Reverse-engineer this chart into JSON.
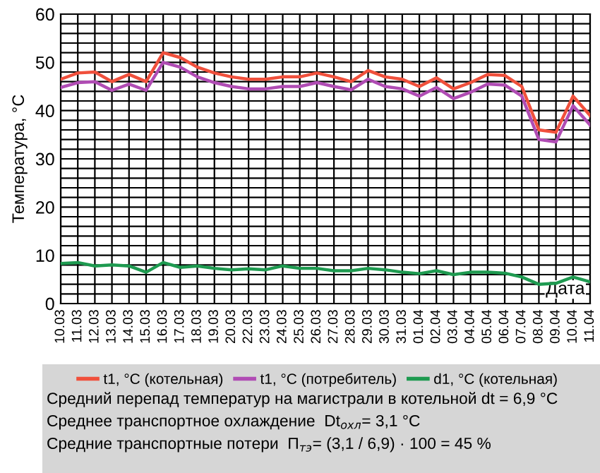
{
  "chart_data": {
    "type": "line",
    "ylabel": "Температура, °C",
    "xlabel": "Дата",
    "categories": [
      "10.03",
      "11.03",
      "12.03",
      "13.03",
      "14.03",
      "15.03",
      "16.03",
      "17.03",
      "18.03",
      "19.03",
      "20.03",
      "22.03",
      "23.03",
      "24.03",
      "25.03",
      "26.03",
      "27.03",
      "28.03",
      "29.03",
      "30.03",
      "31.03",
      "01.04",
      "02.04",
      "03.04",
      "04.04",
      "05.04",
      "06.04",
      "07.04",
      "08.04",
      "09.04",
      "10.04",
      "11.04"
    ],
    "series": [
      {
        "name": "t1, °C (котельная)",
        "color": "#f0503c",
        "values": [
          46.5,
          47.8,
          48,
          46,
          47.5,
          46,
          52,
          51,
          49,
          47.8,
          47,
          46.5,
          46.5,
          47,
          47,
          47.8,
          47,
          46,
          48.3,
          47,
          46.5,
          45,
          46.8,
          44.5,
          45.8,
          47.5,
          47.3,
          45,
          36,
          35.5,
          43,
          39
        ]
      },
      {
        "name": "t1, °C (потребитель)",
        "color": "#b04cb4",
        "values": [
          44.8,
          45.8,
          46,
          44.2,
          45.5,
          44.2,
          50,
          49,
          47,
          45.8,
          45,
          44.5,
          44.5,
          45,
          45,
          45.8,
          45,
          44.3,
          46.5,
          45,
          44.5,
          43,
          44.8,
          42.5,
          43.8,
          45.5,
          45.3,
          43,
          34,
          33.5,
          41,
          37
        ]
      },
      {
        "name": "d1, °C (котельная)",
        "color": "#1e9a50",
        "values": [
          8.3,
          8.5,
          7.8,
          8,
          7.8,
          6.5,
          8.5,
          7.5,
          7.8,
          7.3,
          7,
          7.2,
          7,
          7.8,
          7.3,
          7.3,
          6.8,
          6.8,
          7.3,
          7,
          6.5,
          6.2,
          6.8,
          6,
          6.5,
          6.5,
          6.3,
          5.5,
          4,
          4.2,
          5.5,
          4.5
        ]
      }
    ],
    "ylim": [
      0,
      60
    ],
    "yticks": [
      0,
      {
        "value": 2,
        "label": null
      },
      {
        "value": 4,
        "label": null
      },
      {
        "value": 6,
        "label": null
      },
      {
        "value": 8,
        "label": null
      },
      10,
      {
        "value": 12,
        "label": null
      },
      {
        "value": 14,
        "label": null
      },
      {
        "value": 16,
        "label": null
      },
      {
        "value": 18,
        "label": null
      },
      20,
      {
        "value": 22,
        "label": null
      },
      {
        "value": 24,
        "label": null
      },
      {
        "value": 26,
        "label": null
      },
      {
        "value": 28,
        "label": null
      },
      30,
      {
        "value": 32,
        "label": null
      },
      {
        "value": 34,
        "label": null
      },
      {
        "value": 36,
        "label": null
      },
      {
        "value": 38,
        "label": null
      },
      40,
      {
        "value": 42,
        "label": null
      },
      {
        "value": 44,
        "label": null
      },
      {
        "value": 46,
        "label": null
      },
      {
        "value": 48,
        "label": null
      },
      50,
      {
        "value": 52,
        "label": null
      },
      {
        "value": 54,
        "label": null
      },
      {
        "value": 56,
        "label": null
      },
      {
        "value": 58,
        "label": null
      },
      60
    ],
    "grid": true,
    "legend": "bottom",
    "marker": "none",
    "line_style": "solid",
    "annotations": [
      "Средний перепад температур на магистрали в котельной dt = 6,9 °C",
      "Среднее транспортное охлаждение  Dt$_{охл}$= 3,1 °C",
      "Средние транспортные потери  П$_{тэ}$= (3,1 / 6,9) · 100 = 45 %"
    ]
  }
}
